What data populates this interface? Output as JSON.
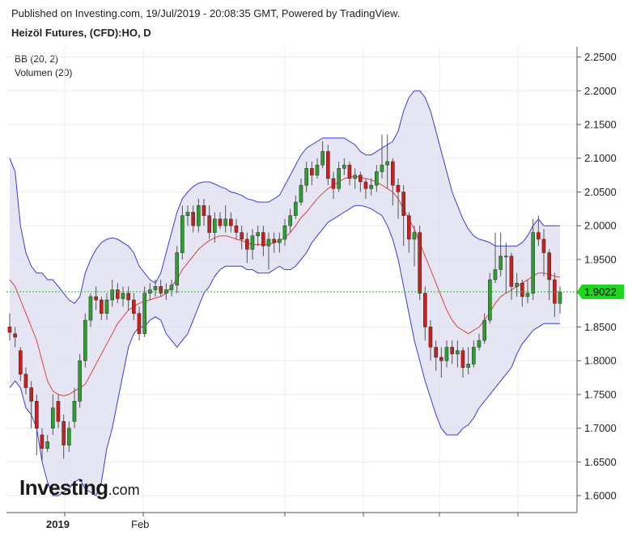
{
  "header": {
    "published": "Published on Investing.com, 19/Jul/2019 - 20:08:35 GMT, Powered by TradingView.",
    "symbol": "Heizöl Futures, (CFD):HO, D"
  },
  "indicators": {
    "bb": "BB (20, 2)",
    "volume": "Volumen (20)"
  },
  "logo": {
    "brand": "Investing",
    "suffix": ".com"
  },
  "colors": {
    "up": "#2e9e2e",
    "down": "#c8201c",
    "band_line": "#3b3bd6",
    "band_fill": "#dcdcf0",
    "mid_line": "#e04040",
    "price_line": "#27c127",
    "price_tag": "#1fd61f"
  },
  "chart_data": {
    "type": "candlestick",
    "y_range": [
      1.575,
      2.265
    ],
    "y_ticks": [
      "2.2500",
      "2.2000",
      "2.1500",
      "2.1000",
      "2.0500",
      "2.0000",
      "1.9500",
      "1.9000",
      "1.8500",
      "1.8000",
      "1.7500",
      "1.7000",
      "1.6500",
      "1.6000"
    ],
    "x_labels": [
      "2019",
      "Feb"
    ],
    "last_price": "1.9022",
    "last_price_value": 1.9022,
    "close": [
      1.842,
      1.835,
      1.78,
      1.76,
      1.74,
      1.7,
      1.67,
      1.68,
      1.73,
      1.71,
      1.675,
      1.7,
      1.74,
      1.8,
      1.86,
      1.895,
      1.89,
      1.87,
      1.89,
      1.905,
      1.892,
      1.9,
      1.89,
      1.87,
      1.84,
      1.9,
      1.905,
      1.91,
      1.9,
      1.905,
      1.912,
      1.96,
      2.015,
      2.02,
      2.0,
      2.03,
      2.015,
      1.99,
      2.01,
      2.0,
      2.01,
      2.0,
      1.99,
      1.98,
      1.965,
      1.985,
      1.99,
      1.97,
      1.98,
      1.975,
      1.98,
      2.0,
      2.015,
      2.035,
      2.06,
      2.085,
      2.075,
      2.09,
      2.11,
      2.07,
      2.055,
      2.085,
      2.09,
      2.07,
      2.075,
      2.065,
      2.055,
      2.06,
      2.08,
      2.09,
      2.095,
      2.06,
      2.05,
      2.015,
      1.98,
      1.99,
      1.9,
      1.85,
      1.82,
      1.805,
      1.8,
      1.82,
      1.81,
      1.815,
      1.79,
      1.795,
      1.82,
      1.83,
      1.86,
      1.92,
      1.935,
      1.955,
      1.955,
      1.91,
      1.915,
      1.895,
      1.9,
      1.99,
      1.98,
      1.96,
      1.92,
      1.885,
      1.9022
    ],
    "open": [
      1.85,
      1.84,
      1.815,
      1.78,
      1.76,
      1.74,
      1.69,
      1.67,
      1.7,
      1.74,
      1.71,
      1.675,
      1.71,
      1.74,
      1.8,
      1.86,
      1.895,
      1.89,
      1.87,
      1.89,
      1.905,
      1.892,
      1.9,
      1.89,
      1.87,
      1.84,
      1.9,
      1.905,
      1.91,
      1.9,
      1.905,
      1.912,
      1.96,
      2.015,
      2.02,
      2.0,
      2.03,
      2.015,
      1.99,
      2.01,
      2.0,
      2.01,
      2.0,
      1.99,
      1.98,
      1.965,
      1.985,
      1.99,
      1.97,
      1.98,
      1.975,
      1.98,
      2.0,
      2.015,
      2.035,
      2.06,
      2.085,
      2.075,
      2.09,
      2.11,
      2.07,
      2.055,
      2.085,
      2.09,
      2.07,
      2.075,
      2.065,
      2.055,
      2.06,
      2.08,
      2.09,
      2.095,
      2.06,
      2.05,
      2.015,
      1.98,
      1.99,
      1.9,
      1.85,
      1.82,
      1.805,
      1.8,
      1.82,
      1.81,
      1.815,
      1.79,
      1.795,
      1.82,
      1.83,
      1.86,
      1.92,
      1.935,
      1.955,
      1.955,
      1.91,
      1.915,
      1.895,
      1.9,
      1.99,
      1.98,
      1.96,
      1.92,
      1.885
    ],
    "high": [
      1.87,
      1.85,
      1.82,
      1.79,
      1.77,
      1.75,
      1.7,
      1.69,
      1.75,
      1.75,
      1.72,
      1.71,
      1.76,
      1.81,
      1.87,
      1.9,
      1.91,
      1.895,
      1.9,
      1.92,
      1.915,
      1.91,
      1.91,
      1.9,
      1.88,
      1.91,
      1.915,
      1.92,
      1.92,
      1.915,
      1.92,
      1.97,
      2.03,
      2.03,
      2.03,
      2.04,
      2.04,
      2.03,
      2.02,
      2.02,
      2.03,
      2.02,
      2.01,
      2.0,
      1.99,
      1.995,
      2.0,
      2.0,
      1.99,
      1.99,
      1.99,
      2.01,
      2.025,
      2.045,
      2.07,
      2.095,
      2.095,
      2.1,
      2.125,
      2.12,
      2.08,
      2.095,
      2.1,
      2.095,
      2.085,
      2.08,
      2.07,
      2.07,
      2.09,
      2.135,
      2.135,
      2.1,
      2.07,
      2.06,
      2.02,
      2.0,
      2.0,
      1.91,
      1.86,
      1.83,
      1.82,
      1.83,
      1.83,
      1.83,
      1.82,
      1.82,
      1.83,
      1.84,
      1.87,
      1.93,
      1.99,
      1.99,
      1.975,
      1.96,
      1.93,
      1.92,
      1.92,
      2.01,
      2.015,
      1.995,
      1.965,
      1.93,
      1.91
    ],
    "low": [
      1.83,
      1.82,
      1.77,
      1.75,
      1.7,
      1.66,
      1.65,
      1.665,
      1.69,
      1.7,
      1.655,
      1.665,
      1.7,
      1.73,
      1.79,
      1.85,
      1.875,
      1.86,
      1.86,
      1.88,
      1.885,
      1.88,
      1.875,
      1.86,
      1.83,
      1.835,
      1.89,
      1.895,
      1.895,
      1.89,
      1.895,
      1.9,
      1.95,
      2.0,
      1.99,
      1.99,
      2.0,
      1.98,
      1.975,
      1.995,
      1.99,
      1.99,
      1.98,
      1.965,
      1.945,
      1.95,
      1.97,
      1.955,
      1.935,
      1.96,
      1.96,
      1.97,
      1.99,
      2.01,
      2.03,
      2.05,
      2.06,
      2.07,
      2.085,
      2.06,
      2.04,
      2.05,
      2.075,
      2.06,
      2.055,
      2.05,
      2.04,
      2.045,
      2.05,
      2.07,
      2.055,
      2.03,
      2.01,
      1.97,
      1.96,
      1.94,
      1.89,
      1.83,
      1.8,
      1.785,
      1.775,
      1.79,
      1.795,
      1.79,
      1.775,
      1.78,
      1.79,
      1.815,
      1.825,
      1.855,
      1.915,
      1.925,
      1.9,
      1.89,
      1.895,
      1.88,
      1.885,
      1.89,
      1.97,
      1.925,
      1.89,
      1.865,
      1.87
    ],
    "bb_upper": [
      2.1,
      2.08,
      2.0,
      1.96,
      1.94,
      1.93,
      1.93,
      1.92,
      1.92,
      1.91,
      1.9,
      1.89,
      1.885,
      1.895,
      1.93,
      1.95,
      1.965,
      1.975,
      1.98,
      1.982,
      1.98,
      1.975,
      1.97,
      1.96,
      1.94,
      1.93,
      1.92,
      1.915,
      1.93,
      1.96,
      1.99,
      2.02,
      2.04,
      2.05,
      2.058,
      2.063,
      2.065,
      2.065,
      2.062,
      2.058,
      2.055,
      2.05,
      2.048,
      2.045,
      2.04,
      2.038,
      2.035,
      2.035,
      2.035,
      2.04,
      2.045,
      2.06,
      2.075,
      2.09,
      2.105,
      2.115,
      2.12,
      2.125,
      2.13,
      2.13,
      2.13,
      2.13,
      2.13,
      2.125,
      2.12,
      2.11,
      2.105,
      2.105,
      2.11,
      2.115,
      2.12,
      2.125,
      2.14,
      2.17,
      2.19,
      2.2,
      2.2,
      2.19,
      2.17,
      2.14,
      2.11,
      2.08,
      2.05,
      2.03,
      2.01,
      1.995,
      1.985,
      1.98,
      1.978,
      1.975,
      1.97,
      1.97,
      1.97,
      1.97,
      1.97,
      1.975,
      1.985,
      2.0,
      2.01,
      2.0,
      2.0,
      2.0,
      2.0
    ],
    "bb_middle": [
      1.92,
      1.91,
      1.89,
      1.87,
      1.85,
      1.83,
      1.8,
      1.77,
      1.755,
      1.75,
      1.748,
      1.75,
      1.755,
      1.76,
      1.765,
      1.78,
      1.795,
      1.81,
      1.825,
      1.84,
      1.855,
      1.865,
      1.875,
      1.88,
      1.885,
      1.888,
      1.89,
      1.893,
      1.895,
      1.9,
      1.91,
      1.92,
      1.935,
      1.945,
      1.955,
      1.965,
      1.972,
      1.978,
      1.982,
      1.985,
      1.985,
      1.983,
      1.98,
      1.978,
      1.975,
      1.972,
      1.972,
      1.972,
      1.972,
      1.975,
      1.978,
      1.982,
      1.99,
      2.0,
      2.012,
      2.02,
      2.03,
      2.04,
      2.048,
      2.055,
      2.06,
      2.065,
      2.07,
      2.072,
      2.073,
      2.072,
      2.07,
      2.068,
      2.065,
      2.06,
      2.055,
      2.05,
      2.04,
      2.025,
      2.01,
      1.995,
      1.975,
      1.955,
      1.935,
      1.915,
      1.895,
      1.875,
      1.86,
      1.85,
      1.845,
      1.84,
      1.845,
      1.85,
      1.86,
      1.872,
      1.885,
      1.895,
      1.9,
      1.905,
      1.91,
      1.915,
      1.92,
      1.925,
      1.93,
      1.93,
      1.928,
      1.925,
      1.924
    ],
    "bb_lower": [
      1.76,
      1.77,
      1.76,
      1.73,
      1.72,
      1.7,
      1.65,
      1.62,
      1.6,
      1.6,
      1.605,
      1.61,
      1.62,
      1.625,
      1.61,
      1.605,
      1.6,
      1.62,
      1.67,
      1.7,
      1.74,
      1.78,
      1.82,
      1.84,
      1.85,
      1.85,
      1.86,
      1.865,
      1.86,
      1.84,
      1.83,
      1.82,
      1.83,
      1.84,
      1.86,
      1.88,
      1.9,
      1.91,
      1.925,
      1.935,
      1.94,
      1.94,
      1.94,
      1.94,
      1.935,
      1.935,
      1.93,
      1.93,
      1.93,
      1.935,
      1.94,
      1.935,
      1.935,
      1.94,
      1.95,
      1.96,
      1.975,
      1.985,
      1.995,
      2.005,
      2.01,
      2.015,
      2.02,
      2.025,
      2.03,
      2.03,
      2.028,
      2.025,
      2.02,
      2.015,
      2.0,
      1.98,
      1.95,
      1.91,
      1.87,
      1.83,
      1.8,
      1.77,
      1.745,
      1.72,
      1.7,
      1.69,
      1.69,
      1.69,
      1.7,
      1.705,
      1.715,
      1.73,
      1.74,
      1.75,
      1.76,
      1.77,
      1.78,
      1.79,
      1.81,
      1.825,
      1.835,
      1.845,
      1.85,
      1.855,
      1.855,
      1.855,
      1.855
    ]
  }
}
